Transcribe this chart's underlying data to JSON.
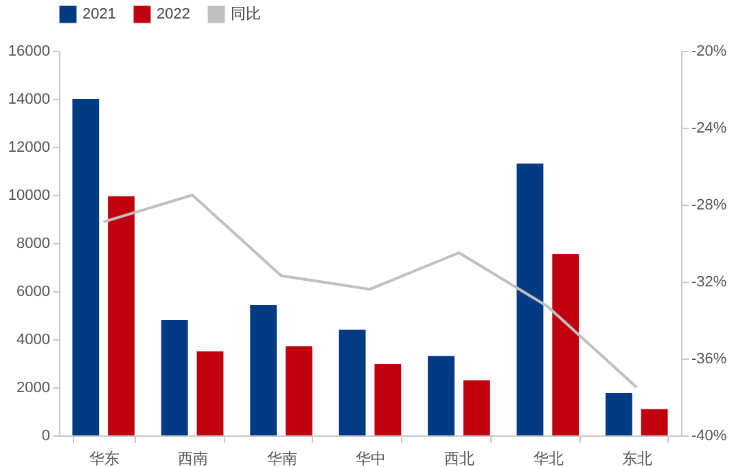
{
  "chart_data": {
    "type": "bar",
    "categories": [
      "华东",
      "西南",
      "华南",
      "华中",
      "西北",
      "华北",
      "东北"
    ],
    "series": [
      {
        "name": "2021",
        "color": "#023a84",
        "values": [
          14000,
          4800,
          5430,
          4400,
          3310,
          11310,
          1770
        ]
      },
      {
        "name": "2022",
        "color": "#c0000e",
        "values": [
          9950,
          3500,
          3710,
          2970,
          2290,
          7540,
          1090
        ]
      },
      {
        "name": "同比",
        "type": "line",
        "axis": "y2",
        "color": "#c0c0c0",
        "values": [
          -28.9,
          -27.5,
          -31.7,
          -32.4,
          -30.5,
          -33.3,
          -37.5
        ]
      }
    ],
    "ylim": [
      0,
      16000
    ],
    "yticks": [
      0,
      2000,
      4000,
      6000,
      8000,
      10000,
      12000,
      14000,
      16000
    ],
    "y2lim": [
      -40,
      -20
    ],
    "y2ticks": [
      {
        "value": -40,
        "label": "-40%"
      },
      {
        "value": -36,
        "label": "-36%"
      },
      {
        "value": -32,
        "label": "-32%"
      },
      {
        "value": -28,
        "label": "-28%"
      },
      {
        "value": -24,
        "label": "-24%"
      },
      {
        "value": -20,
        "label": "-20%"
      }
    ],
    "grid": false,
    "legend": "top"
  }
}
